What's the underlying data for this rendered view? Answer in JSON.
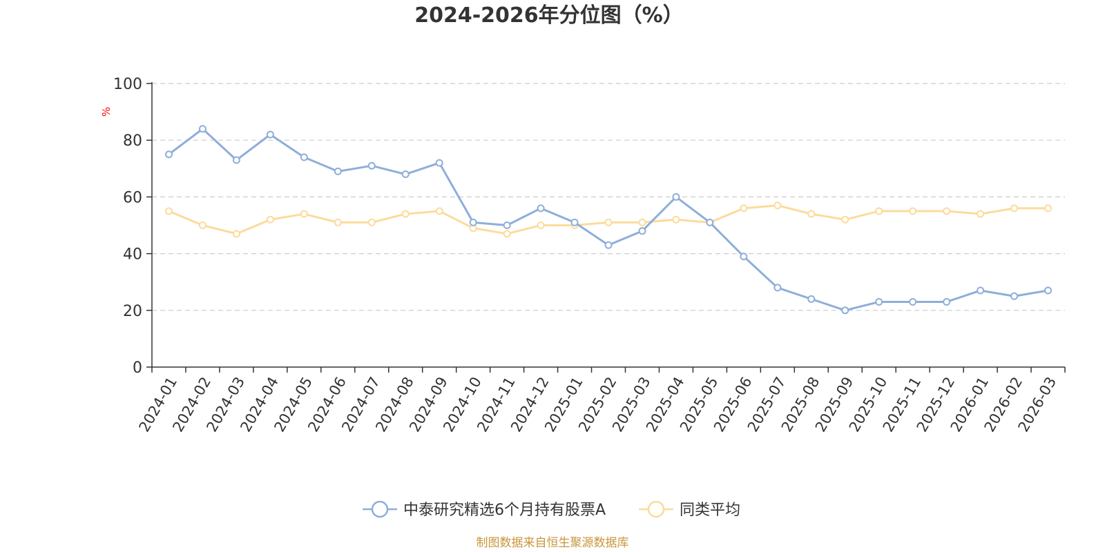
{
  "chart_data": {
    "type": "line",
    "title": "2024-2026年分位图（%）",
    "ylabel": "%",
    "ylim": [
      0,
      100
    ],
    "yticks": [
      0,
      20,
      40,
      60,
      80,
      100
    ],
    "grid": true,
    "legend_position": "bottom-center",
    "categories": [
      "2024-01",
      "2024-02",
      "2024-03",
      "2024-04",
      "2024-05",
      "2024-06",
      "2024-07",
      "2024-08",
      "2024-09",
      "2024-10",
      "2024-11",
      "2024-12",
      "2025-01",
      "2025-02",
      "2025-03",
      "2025-04",
      "2025-05",
      "2025-06",
      "2025-07",
      "2025-08",
      "2025-09",
      "2025-10",
      "2025-11",
      "2025-12",
      "2026-01",
      "2026-02",
      "2026-03"
    ],
    "series": [
      {
        "name": "中泰研究精选6个月持有股票A",
        "color": "#8eaed9",
        "values": [
          75,
          84,
          73,
          82,
          74,
          69,
          71,
          68,
          72,
          51,
          50,
          56,
          51,
          43,
          48,
          60,
          51,
          39,
          28,
          24,
          20,
          23,
          23,
          23,
          27,
          25,
          27
        ]
      },
      {
        "name": "同类平均",
        "color": "#fcdb9b",
        "values": [
          55,
          50,
          47,
          52,
          54,
          51,
          51,
          54,
          55,
          49,
          47,
          50,
          50,
          51,
          51,
          52,
          51,
          56,
          57,
          54,
          52,
          55,
          55,
          55,
          54,
          56,
          56
        ]
      }
    ],
    "source": "制图数据来自恒生聚源数据库",
    "colors": {
      "unit_label": "#ff0000",
      "source": "#c8963c",
      "axis": "#333333",
      "grid": "#cccccc"
    }
  }
}
